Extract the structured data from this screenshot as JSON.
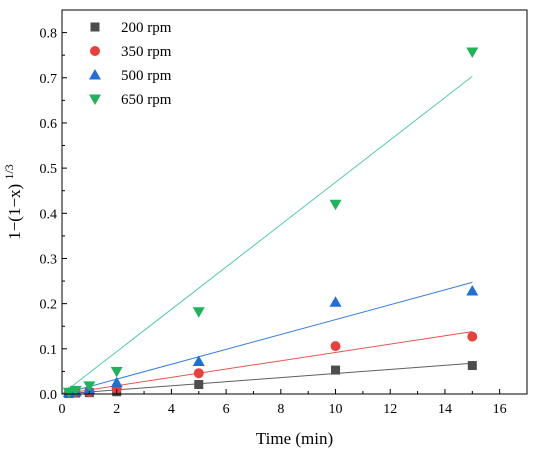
{
  "chart_data": {
    "type": "scatter",
    "title": "",
    "xlabel": "Time (min)",
    "ylabel_main": "1−(1−x)",
    "ylabel_sup": "1/3",
    "xlim": [
      0,
      17
    ],
    "ylim": [
      0,
      0.85
    ],
    "xticks": [
      0,
      2,
      4,
      6,
      8,
      10,
      12,
      14,
      16
    ],
    "yticks": [
      0.0,
      0.1,
      0.2,
      0.3,
      0.4,
      0.5,
      0.6,
      0.7,
      0.8
    ],
    "ytick_labels": [
      "0.0",
      "0.1",
      "0.2",
      "0.3",
      "0.4",
      "0.5",
      "0.6",
      "0.7",
      "0.8"
    ],
    "grid": false,
    "legend_position": "top-left",
    "series": [
      {
        "name": "200 rpm",
        "marker": "square",
        "color": "#4d4d4d",
        "x": [
          0.25,
          0.5,
          1,
          2,
          5,
          10,
          15
        ],
        "y": [
          0.001,
          0.002,
          0.003,
          0.005,
          0.021,
          0.053,
          0.063
        ],
        "fit": [
          [
            0,
            0
          ],
          [
            15,
            0.068
          ]
        ]
      },
      {
        "name": "350 rpm",
        "marker": "circle",
        "color": "#e8413c",
        "x": [
          0.25,
          0.5,
          1,
          2,
          5,
          10,
          15
        ],
        "y": [
          0.002,
          0.003,
          0.005,
          0.012,
          0.046,
          0.106,
          0.127
        ],
        "fit": [
          [
            0,
            0
          ],
          [
            15,
            0.138
          ]
        ]
      },
      {
        "name": "500 rpm",
        "marker": "triangle-up",
        "color": "#1f6fdb",
        "x": [
          0.25,
          0.5,
          1,
          2,
          5,
          10,
          15
        ],
        "y": [
          0.003,
          0.005,
          0.01,
          0.025,
          0.072,
          0.203,
          0.228
        ],
        "fit": [
          [
            0,
            0
          ],
          [
            15,
            0.247
          ]
        ]
      },
      {
        "name": "650 rpm",
        "marker": "triangle-down",
        "color": "#1fb35a",
        "fit_color": "#3ec99a",
        "x": [
          0.25,
          0.5,
          1,
          2,
          5,
          10,
          15
        ],
        "y": [
          0.004,
          0.008,
          0.018,
          0.05,
          0.182,
          0.42,
          0.757
        ],
        "fit": [
          [
            0,
            0
          ],
          [
            15,
            0.703
          ]
        ]
      }
    ]
  }
}
